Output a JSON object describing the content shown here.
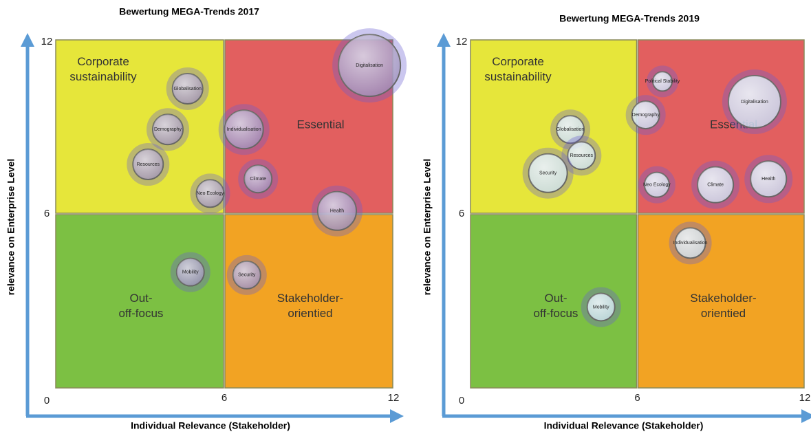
{
  "chart_data": [
    {
      "type": "bubble",
      "title": "Bewertung MEGA-Trends 2017",
      "xlabel": "Individual Relevance (Stakeholder)",
      "ylabel": "relevance on Enterprise Level",
      "xlim": [
        0,
        12
      ],
      "ylim": [
        0,
        12
      ],
      "xticks": [
        6,
        12
      ],
      "yticks": [
        0,
        6,
        12
      ],
      "quadrants": [
        {
          "label": "Corporate sustainability",
          "color": "#e6e63a"
        },
        {
          "label": "Essential",
          "color": "#e25f5f"
        },
        {
          "label": "Out-off-focus",
          "color": "#7cc043"
        },
        {
          "label": "Stakeholder-orientied",
          "color": "#f2a323"
        }
      ],
      "bubble_color": "#9c8fc0",
      "points": [
        {
          "label": "Digitalisation",
          "x": 11.15,
          "y": 11.1,
          "size": 9
        },
        {
          "label": "Globalisation",
          "x": 4.7,
          "y": 10.3,
          "size": 4.4
        },
        {
          "label": "Demography",
          "x": 4.0,
          "y": 8.9,
          "size": 4.4
        },
        {
          "label": "Individualisation",
          "x": 6.7,
          "y": 8.9,
          "size": 5.6
        },
        {
          "label": "Resources",
          "x": 3.3,
          "y": 7.7,
          "size": 4.4
        },
        {
          "label": "Climate",
          "x": 7.2,
          "y": 7.2,
          "size": 4
        },
        {
          "label": "Neo Ecology",
          "x": 5.5,
          "y": 6.7,
          "size": 4
        },
        {
          "label": "Health",
          "x": 10.0,
          "y": 6.1,
          "size": 5.6
        },
        {
          "label": "Mobility",
          "x": 4.8,
          "y": 4.0,
          "size": 4
        },
        {
          "label": "Security",
          "x": 6.8,
          "y": 3.9,
          "size": 4
        }
      ]
    },
    {
      "type": "bubble",
      "title": "Bewertung MEGA-Trends 2019",
      "xlabel": "Individual Relevance (Stakeholder)",
      "ylabel": "relevance on Enterprise Level",
      "xlim": [
        0,
        12
      ],
      "ylim": [
        0,
        12
      ],
      "xticks": [
        6,
        12
      ],
      "yticks": [
        0,
        6,
        12
      ],
      "quadrants": [
        {
          "label": "Corporate sustainability",
          "color": "#e6e63a"
        },
        {
          "label": "Essential",
          "color": "#e25f5f"
        },
        {
          "label": "Out-off-focus",
          "color": "#7cc043"
        },
        {
          "label": "Stakeholder-orientied",
          "color": "#f2a323"
        }
      ],
      "bubble_color": "#c9daf2",
      "points": [
        {
          "label": "Political Stability",
          "x": 6.9,
          "y": 10.55,
          "size": 2.8
        },
        {
          "label": "Digitalisation",
          "x": 10.2,
          "y": 9.85,
          "size": 7.6
        },
        {
          "label": "Demography",
          "x": 6.3,
          "y": 9.4,
          "size": 4
        },
        {
          "label": "Globalisation",
          "x": 3.6,
          "y": 8.9,
          "size": 4
        },
        {
          "label": "Resources",
          "x": 4.0,
          "y": 8.0,
          "size": 4
        },
        {
          "label": "Security",
          "x": 2.8,
          "y": 7.4,
          "size": 5.6
        },
        {
          "label": "Neo Ecology",
          "x": 6.7,
          "y": 7.0,
          "size": 3.6
        },
        {
          "label": "Climate",
          "x": 8.8,
          "y": 7.0,
          "size": 5.2
        },
        {
          "label": "Health",
          "x": 10.7,
          "y": 7.2,
          "size": 5.2
        },
        {
          "label": "Individualisation",
          "x": 7.9,
          "y": 5.0,
          "size": 4.4
        },
        {
          "label": "Mobility",
          "x": 4.7,
          "y": 2.8,
          "size": 4
        }
      ]
    }
  ]
}
